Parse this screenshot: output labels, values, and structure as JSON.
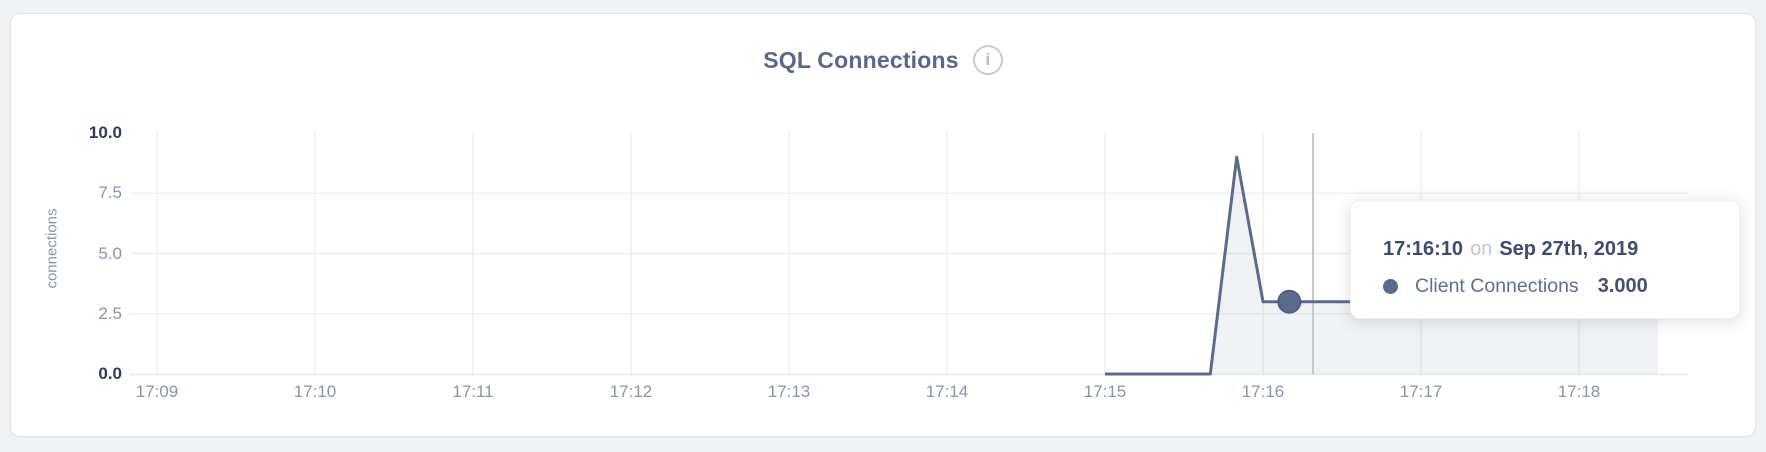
{
  "page": {
    "background": "#f1f2f4",
    "card_background": "#ffffff",
    "card_border": "#e3e4e6"
  },
  "header": {
    "title": "SQL Connections",
    "info_icon_glyph": "i"
  },
  "chart_data": {
    "type": "area",
    "title": "SQL Connections",
    "xlabel": "",
    "ylabel": "connections",
    "ylim": [
      0,
      10
    ],
    "y_ticks": [
      10.0,
      7.5,
      5.0,
      2.5,
      0.0
    ],
    "y_tick_labels": [
      "10.0",
      "7.5",
      "5.0",
      "2.5",
      "0.0"
    ],
    "x_tick_labels": [
      "17:09",
      "17:10",
      "17:11",
      "17:12",
      "17:13",
      "17:14",
      "17:15",
      "17:16",
      "17:17",
      "17:18"
    ],
    "grid": true,
    "legend_position": "none",
    "series": [
      {
        "name": "Client Connections",
        "color": "#5c6b8d",
        "fill": "rgba(92,107,141,0.09)",
        "points": [
          {
            "t": "17:15:00",
            "v": 0
          },
          {
            "t": "17:15:10",
            "v": 0
          },
          {
            "t": "17:15:20",
            "v": 0
          },
          {
            "t": "17:15:30",
            "v": 0
          },
          {
            "t": "17:15:40",
            "v": 0
          },
          {
            "t": "17:15:50",
            "v": 9
          },
          {
            "t": "17:16:00",
            "v": 3
          },
          {
            "t": "17:16:10",
            "v": 3
          },
          {
            "t": "17:16:20",
            "v": 3
          },
          {
            "t": "17:16:30",
            "v": 3
          },
          {
            "t": "17:16:40",
            "v": 3
          },
          {
            "t": "17:16:50",
            "v": 3
          },
          {
            "t": "17:17:00",
            "v": 3
          },
          {
            "t": "17:17:10",
            "v": 3
          },
          {
            "t": "17:17:20",
            "v": 3
          },
          {
            "t": "17:17:30",
            "v": 3
          },
          {
            "t": "17:17:40",
            "v": 3
          },
          {
            "t": "17:17:50",
            "v": 3
          },
          {
            "t": "17:18:00",
            "v": 3
          },
          {
            "t": "17:18:10",
            "v": 3
          },
          {
            "t": "17:18:20",
            "v": 3
          },
          {
            "t": "17:18:30",
            "v": 3
          }
        ]
      }
    ]
  },
  "hover": {
    "crosshair_time": "17:16:19",
    "highlighted_point": {
      "time": "17:16:10",
      "value": 3
    }
  },
  "tooltip": {
    "time": "17:16:10",
    "connector": "on",
    "date": "Sep 27th, 2019",
    "series_label": "Client Connections",
    "value": "3.000",
    "marker_color": "#5c6b8d"
  },
  "colors": {
    "line": "#5c6b8d",
    "dot_stroke": "#4f5f82",
    "grid": "#efeff1",
    "axis_line": "#e6e7ea",
    "crosshair": "#c3c7ce",
    "tick_text": "#8a94a8",
    "tick_text_emphasis": "#2c3c5c",
    "title_text": "#59688a"
  }
}
